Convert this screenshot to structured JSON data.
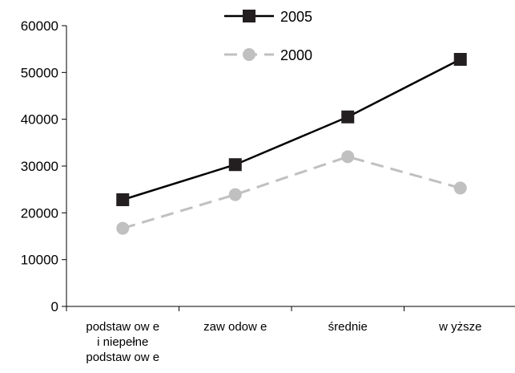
{
  "chart_data": {
    "type": "line",
    "categories": [
      [
        "podstaw ow e",
        "i niepełne",
        "podstaw ow e"
      ],
      [
        "zaw odow e"
      ],
      [
        "średnie"
      ],
      [
        "w yższe"
      ]
    ],
    "series": [
      {
        "name": "2005",
        "values": [
          22800,
          30300,
          40500,
          52800
        ],
        "color": "#000000",
        "marker": "square",
        "dash": "solid"
      },
      {
        "name": "2000",
        "values": [
          16700,
          23900,
          32000,
          25300
        ],
        "color": "#c0c0c0",
        "marker": "circle",
        "dash": "dashed"
      }
    ],
    "yticks": [
      "0",
      "10000",
      "20000",
      "30000",
      "40000",
      "50000",
      "60000"
    ],
    "ylim": [
      0,
      60000
    ],
    "grid": false,
    "legend_position": "top-center",
    "title": "",
    "xlabel": "",
    "ylabel": ""
  }
}
